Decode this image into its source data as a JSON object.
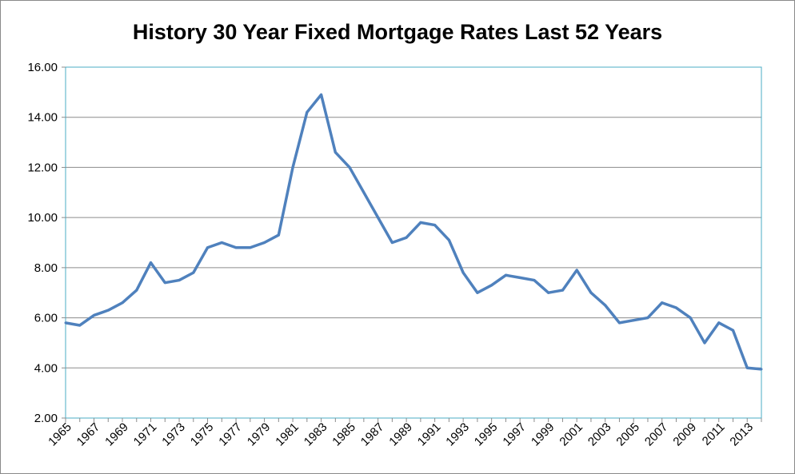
{
  "chart_data": {
    "type": "line",
    "title": "History 30 Year Fixed Mortgage Rates Last 52 Years",
    "xlabel": "",
    "ylabel": "",
    "ylim": [
      2,
      16
    ],
    "yticks": [
      "2.00",
      "4.00",
      "6.00",
      "8.00",
      "10.00",
      "12.00",
      "14.00",
      "16.00"
    ],
    "xtick_labels": [
      "1965",
      "1967",
      "1969",
      "1971",
      "1973",
      "1975",
      "1977",
      "1979",
      "1981",
      "1983",
      "1985",
      "1987",
      "1989",
      "1991",
      "1993",
      "1995",
      "1997",
      "1999",
      "2001",
      "2003",
      "2005",
      "2007",
      "2009",
      "2011",
      "2013"
    ],
    "grid": "horizontal",
    "legend": "none",
    "line_color": "#4F81BD",
    "x": [
      1965,
      1966,
      1967,
      1968,
      1969,
      1970,
      1971,
      1972,
      1973,
      1974,
      1975,
      1976,
      1977,
      1978,
      1979,
      1980,
      1981,
      1982,
      1983,
      1984,
      1985,
      1986,
      1987,
      1988,
      1989,
      1990,
      1991,
      1992,
      1993,
      1994,
      1995,
      1996,
      1997,
      1998,
      1999,
      2000,
      2001,
      2002,
      2003,
      2004,
      2005,
      2006,
      2007,
      2008,
      2009,
      2010,
      2011,
      2012,
      2013,
      2014
    ],
    "values": [
      5.8,
      5.7,
      6.1,
      6.3,
      6.6,
      7.1,
      8.2,
      7.4,
      7.5,
      7.8,
      8.8,
      9.0,
      8.8,
      8.8,
      9.0,
      9.3,
      12.0,
      14.2,
      14.9,
      12.6,
      12.0,
      11.0,
      10.0,
      9.0,
      9.2,
      9.8,
      9.7,
      9.1,
      7.8,
      7.0,
      7.3,
      7.7,
      7.6,
      7.5,
      7.0,
      7.1,
      7.9,
      7.0,
      6.5,
      5.8,
      5.9,
      6.0,
      6.6,
      6.4,
      6.0,
      5.0,
      5.8,
      5.5,
      4.0,
      3.95
    ]
  }
}
